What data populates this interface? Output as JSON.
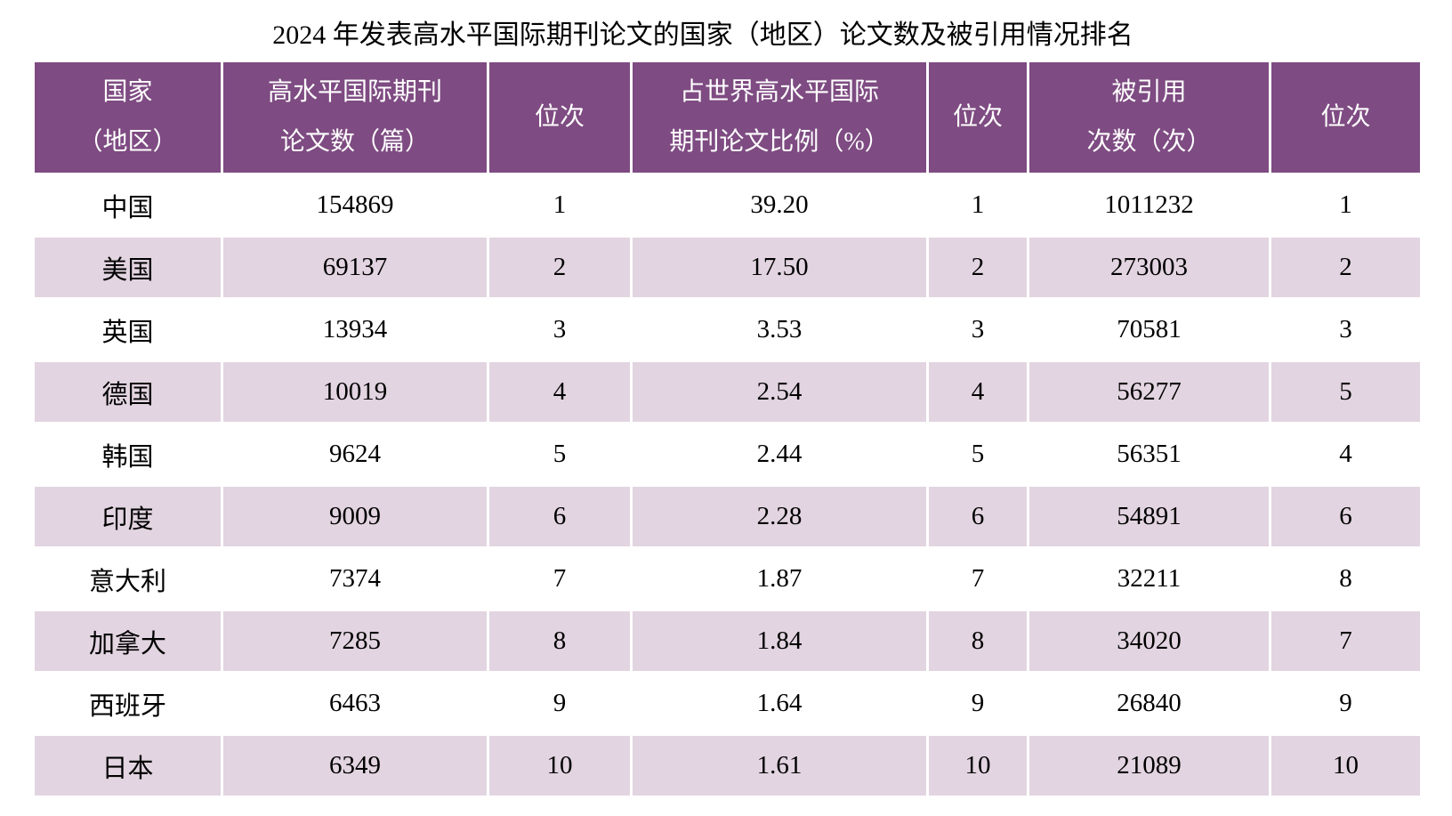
{
  "title": "2024 年发表高水平国际期刊论文的国家（地区）论文数及被引用情况排名",
  "chart_data": {
    "type": "table",
    "title": "2024 年发表高水平国际期刊论文的国家（地区）论文数及被引用情况排名",
    "columns": [
      {
        "line1": "国家",
        "line2": "（地区）"
      },
      {
        "line1": "高水平国际期刊",
        "line2": "论文数（篇）"
      },
      {
        "line1": "位次",
        "line2": ""
      },
      {
        "line1": "占世界高水平国际",
        "line2": "期刊论文比例（%）"
      },
      {
        "line1": "位次",
        "line2": ""
      },
      {
        "line1": "被引用",
        "line2": "次数（次）"
      },
      {
        "line1": "位次",
        "line2": ""
      }
    ],
    "rows": [
      [
        "中国",
        "154869",
        "1",
        "39.20",
        "1",
        "1011232",
        "1"
      ],
      [
        "美国",
        "69137",
        "2",
        "17.50",
        "2",
        "273003",
        "2"
      ],
      [
        "英国",
        "13934",
        "3",
        "3.53",
        "3",
        "70581",
        "3"
      ],
      [
        "德国",
        "10019",
        "4",
        "2.54",
        "4",
        "56277",
        "5"
      ],
      [
        "韩国",
        "9624",
        "5",
        "2.44",
        "5",
        "56351",
        "4"
      ],
      [
        "印度",
        "9009",
        "6",
        "2.28",
        "6",
        "54891",
        "6"
      ],
      [
        "意大利",
        "7374",
        "7",
        "1.87",
        "7",
        "32211",
        "8"
      ],
      [
        "加拿大",
        "7285",
        "8",
        "1.84",
        "8",
        "34020",
        "7"
      ],
      [
        "西班牙",
        "6463",
        "9",
        "1.64",
        "9",
        "26840",
        "9"
      ],
      [
        "日本",
        "6349",
        "10",
        "1.61",
        "10",
        "21089",
        "10"
      ]
    ]
  },
  "colors": {
    "header_bg": "#7E4B82",
    "row_alt_bg": "#E2D4E0",
    "row_bg": "#FFFFFF",
    "header_text": "#FFFFFF",
    "body_text": "#000000"
  }
}
